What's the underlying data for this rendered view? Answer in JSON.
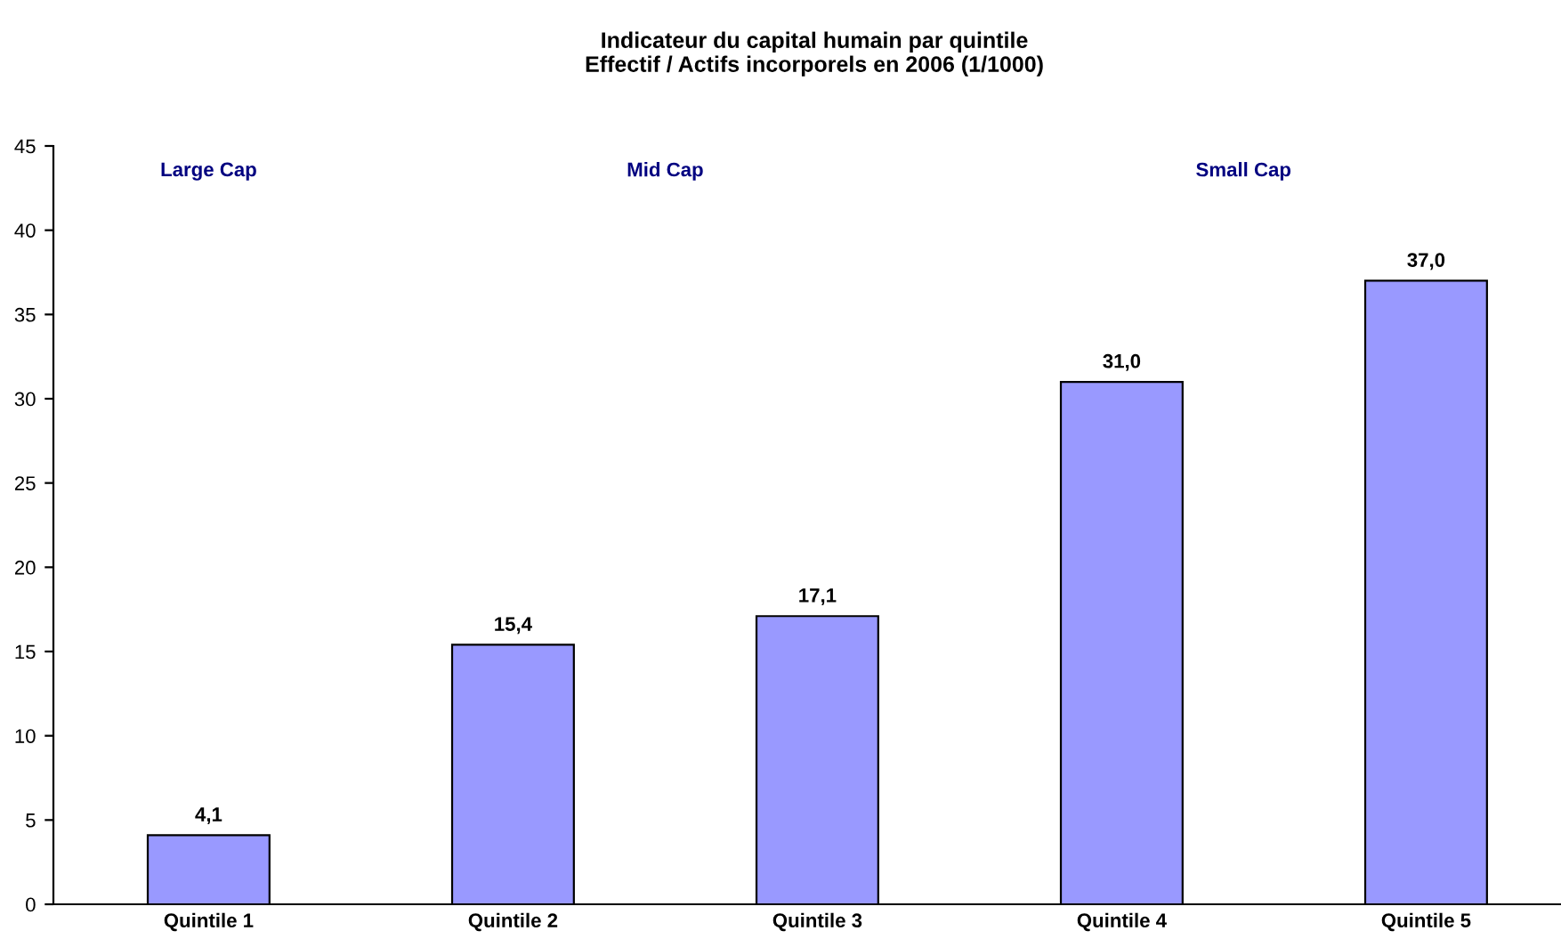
{
  "chart_data": {
    "type": "bar",
    "title": "Indicateur du capital humain par quintile\nEffectif / Actifs incorporels en 2006 (1/1000)",
    "categories": [
      "Quintile 1",
      "Quintile 2",
      "Quintile 3",
      "Quintile 4",
      "Quintile 5"
    ],
    "values": [
      4.1,
      15.4,
      17.1,
      31.0,
      37.0
    ],
    "color": "#9999ff",
    "value_labels": [
      "4,1",
      "15,4",
      "17,1",
      "31,0",
      "37,0"
    ],
    "ylim": [
      0,
      45
    ],
    "yticks": [
      0,
      5,
      10,
      15,
      20,
      25,
      30,
      35,
      40,
      45
    ],
    "grid": false,
    "legend": false,
    "annotations": [
      "Large Cap",
      "Mid Cap",
      "Small Cap"
    ]
  }
}
